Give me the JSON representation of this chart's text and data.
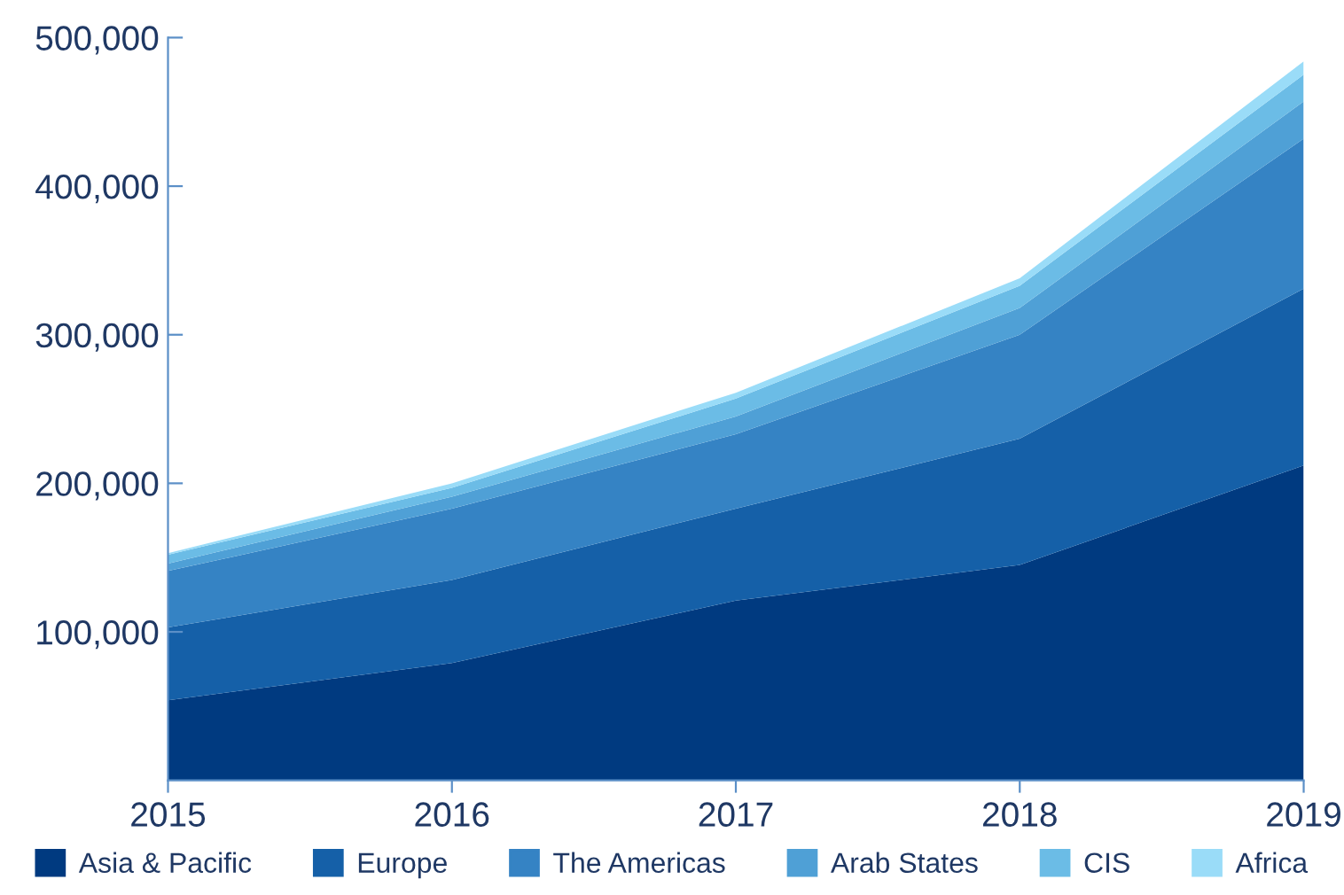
{
  "chart_data": {
    "type": "area",
    "stacked": true,
    "x": [
      2015,
      2016,
      2017,
      2018,
      2019
    ],
    "series": [
      {
        "name": "Asia & Pacific",
        "color": "#003a80",
        "values": [
          54000,
          79000,
          121000,
          145000,
          212000
        ]
      },
      {
        "name": "Europe",
        "color": "#1560a8",
        "values": [
          49000,
          56000,
          62000,
          85000,
          119000
        ]
      },
      {
        "name": "The Americas",
        "color": "#3583c4",
        "values": [
          38000,
          48000,
          50000,
          70000,
          101000
        ]
      },
      {
        "name": "Arab States",
        "color": "#4fa0d6",
        "values": [
          5000,
          8000,
          12000,
          18000,
          25000
        ]
      },
      {
        "name": "CIS",
        "color": "#6bbce6",
        "values": [
          6000,
          6000,
          12000,
          15000,
          18000
        ]
      },
      {
        "name": "Africa",
        "color": "#9adcf8",
        "values": [
          1000,
          3000,
          4000,
          5000,
          9000
        ]
      }
    ],
    "xlim": [
      2015,
      2019
    ],
    "xticks": [
      2015,
      2016,
      2017,
      2018,
      2019
    ],
    "ylim": [
      0,
      500000
    ],
    "yticks": [
      {
        "value": 100000,
        "label": "100,000"
      },
      {
        "value": 200000,
        "label": "200,000"
      },
      {
        "value": 300000,
        "label": "300,000"
      },
      {
        "value": 400000,
        "label": "400,000"
      },
      {
        "value": 500000,
        "label": "500,000"
      }
    ],
    "grid": false,
    "legend": "bottom"
  }
}
